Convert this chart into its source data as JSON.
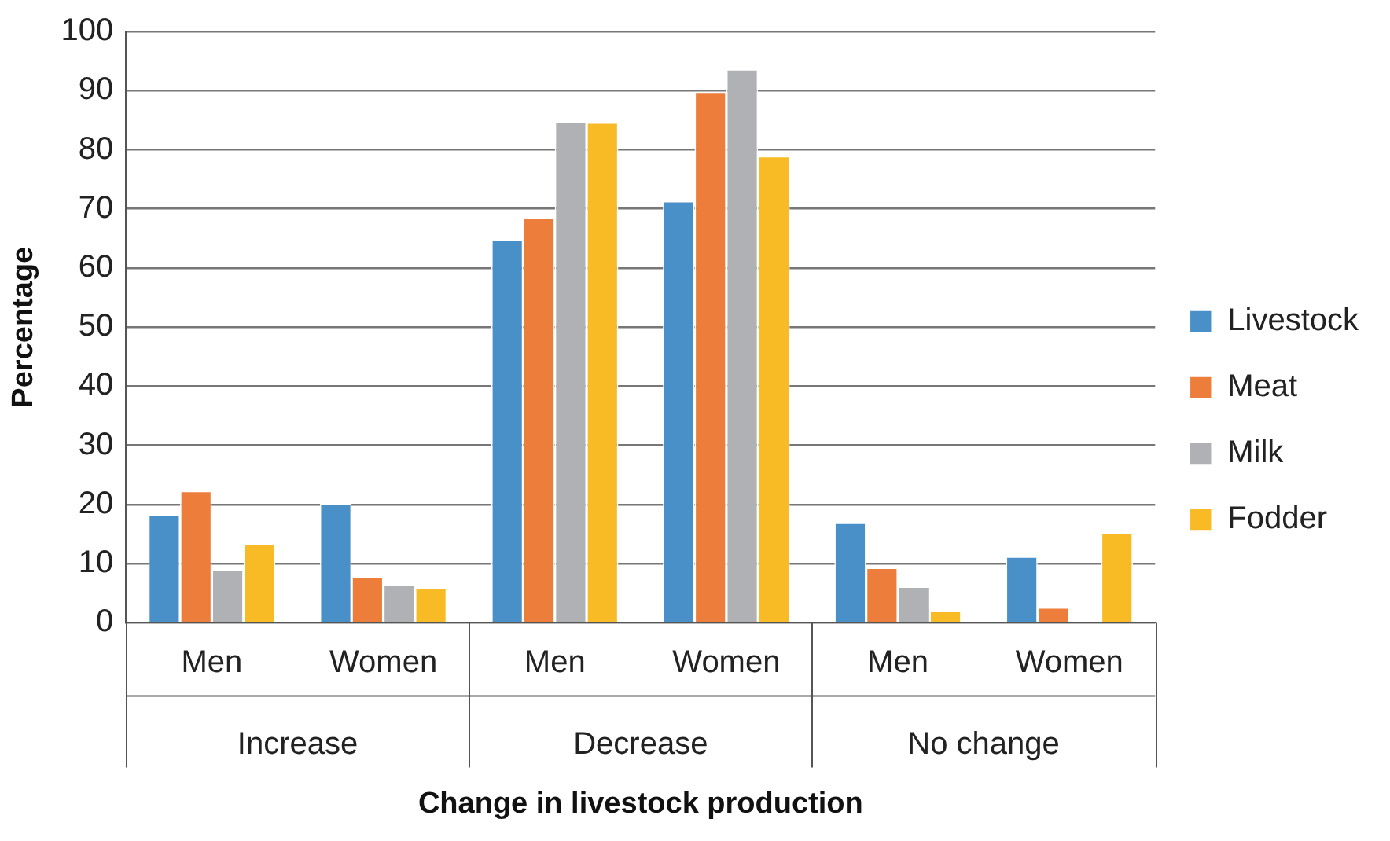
{
  "chart_data": {
    "type": "bar",
    "xlabel": "Change in livestock production",
    "ylabel": "Percentage",
    "categories": [
      "Men",
      "Women",
      "Men",
      "Women",
      "Men",
      "Women"
    ],
    "annotations": [
      "Increase",
      "Decrease",
      "No change"
    ],
    "series": [
      {
        "name": "Livestock",
        "color": "#4a90c8",
        "values": [
          18.3,
          20.2,
          64.8,
          71.3,
          16.9,
          11.2
        ]
      },
      {
        "name": "Meat",
        "color": "#ed7d3b",
        "values": [
          22.3,
          7.7,
          68.5,
          89.8,
          9.3,
          2.6
        ]
      },
      {
        "name": "Milk",
        "color": "#b0b1b4",
        "values": [
          9,
          6.4,
          84.8,
          93.6,
          6.1,
          0
        ]
      },
      {
        "name": "Fodder",
        "color": "#f8bb26",
        "values": [
          13.4,
          5.9,
          84.6,
          78.9,
          2,
          15.2
        ]
      }
    ],
    "ylim": [
      0,
      100
    ],
    "yticks": [
      0,
      10,
      20,
      30,
      40,
      50,
      60,
      70,
      80,
      90,
      100
    ],
    "grid": "y",
    "legend": "right"
  }
}
